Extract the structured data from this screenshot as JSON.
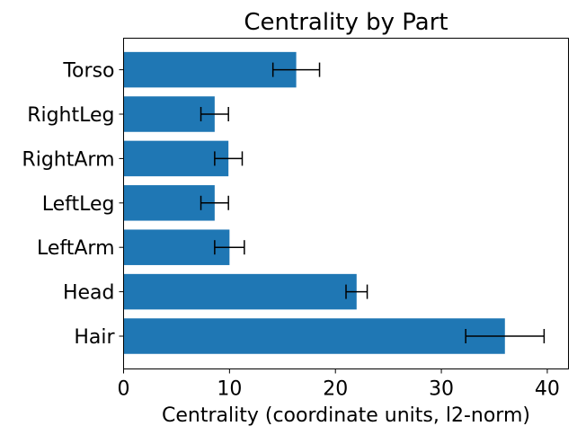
{
  "chart_data": {
    "type": "bar",
    "orientation": "horizontal",
    "title": "Centrality by Part",
    "xlabel": "Centrality (coordinate units, l2-norm)",
    "ylabel": "",
    "xlim": [
      0,
      42
    ],
    "xticks": [
      0,
      10,
      20,
      30,
      40
    ],
    "categories": [
      "Hair",
      "Head",
      "LeftArm",
      "LeftLeg",
      "RightArm",
      "RightLeg",
      "Torso"
    ],
    "values": [
      36.0,
      22.0,
      10.0,
      8.6,
      9.9,
      8.6,
      16.3
    ],
    "errors": [
      3.7,
      1.0,
      1.4,
      1.3,
      1.3,
      1.3,
      2.2
    ],
    "bar_color": "#1f77b4",
    "error_color": "#000000",
    "grid": false
  }
}
